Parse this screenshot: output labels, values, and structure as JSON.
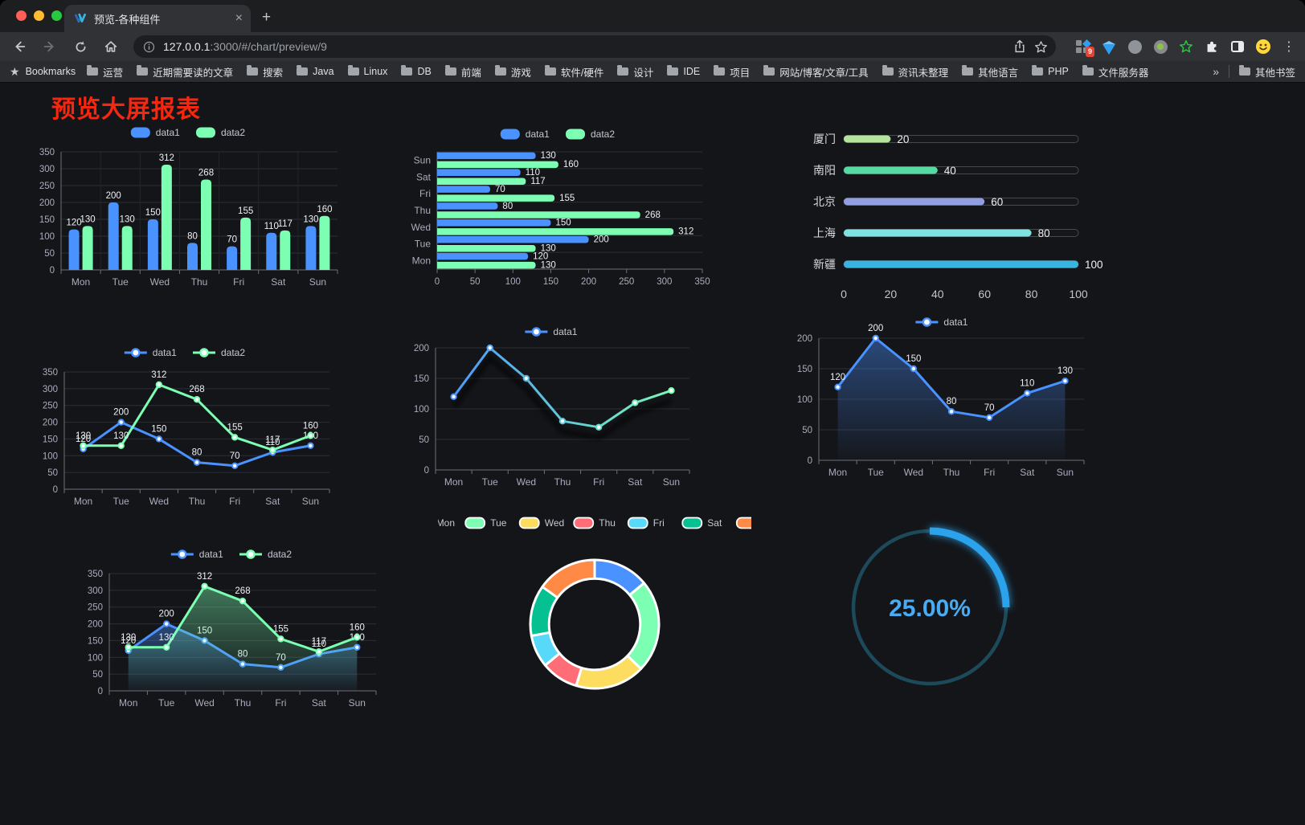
{
  "browser": {
    "tab_title": "预览-各种组件",
    "url_host": "127.0.0.1",
    "url_rest": ":3000/#/chart/preview/9",
    "bookmarks_label": "Bookmarks",
    "bookmark_folders": [
      "运营",
      "近期需要读的文章",
      "搜索",
      "Java",
      "Linux",
      "DB",
      "前端",
      "游戏",
      "软件/硬件",
      "设计",
      "IDE",
      "项目",
      "网站/博客/文章/工具",
      "资讯未整理",
      "其他语言",
      "PHP",
      "文件服务器"
    ],
    "overflow_chevron": "»",
    "other_bookmarks_label": "其他书签",
    "extension_badge": "9",
    "traffic_lights": [
      "#ff5f57",
      "#febc2e",
      "#28c840"
    ]
  },
  "page": {
    "title": "预览大屏报表",
    "title_color": "#f5270e"
  },
  "colors": {
    "data1": "#4992ff",
    "data2": "#7cffb2",
    "axis_text": "#a9adbb",
    "grid_line": "#2c2e38",
    "axis_line": "#6e7079",
    "label_text": "#eef0f4"
  },
  "chart_data": [
    {
      "id": "bar-grouped",
      "type": "bar",
      "categories": [
        "Mon",
        "Tue",
        "Wed",
        "Thu",
        "Fri",
        "Sat",
        "Sun"
      ],
      "series": [
        {
          "name": "data1",
          "color": "#4992ff",
          "values": [
            120,
            200,
            150,
            80,
            70,
            110,
            130
          ]
        },
        {
          "name": "data2",
          "color": "#7cffb2",
          "values": [
            130,
            130,
            312,
            268,
            155,
            117,
            160
          ]
        }
      ],
      "ylim": [
        0,
        350
      ],
      "ystep": 50,
      "legend": "rect",
      "labels": true
    },
    {
      "id": "bar-horizontal",
      "type": "hbar",
      "categories": [
        "Mon",
        "Tue",
        "Wed",
        "Thu",
        "Fri",
        "Sat",
        "Sun"
      ],
      "series": [
        {
          "name": "data1",
          "color": "#4992ff",
          "values": [
            120,
            200,
            150,
            80,
            70,
            110,
            130
          ]
        },
        {
          "name": "data2",
          "color": "#7cffb2",
          "values": [
            130,
            130,
            312,
            268,
            155,
            117,
            160
          ]
        }
      ],
      "xlim": [
        0,
        350
      ],
      "xstep": 50,
      "legend": "rect",
      "labels": true
    },
    {
      "id": "progress",
      "type": "progress",
      "max": 100,
      "xticks": [
        0,
        20,
        40,
        60,
        80,
        100
      ],
      "items": [
        {
          "label": "厦门",
          "value": 20,
          "color": "#b3e39c"
        },
        {
          "label": "南阳",
          "value": 40,
          "color": "#55dba2"
        },
        {
          "label": "北京",
          "value": 60,
          "color": "#919ee2"
        },
        {
          "label": "上海",
          "value": 80,
          "color": "#80e2df"
        },
        {
          "label": "新疆",
          "value": 100,
          "color": "#39b4e0"
        }
      ]
    },
    {
      "id": "line-two",
      "type": "line",
      "categories": [
        "Mon",
        "Tue",
        "Wed",
        "Thu",
        "Fri",
        "Sat",
        "Sun"
      ],
      "series": [
        {
          "name": "data1",
          "color": "#4992ff",
          "values": [
            120,
            200,
            150,
            80,
            70,
            110,
            130
          ]
        },
        {
          "name": "data2",
          "color": "#7cffb2",
          "values": [
            130,
            130,
            312,
            268,
            155,
            117,
            160
          ]
        }
      ],
      "ylim": [
        0,
        350
      ],
      "ystep": 50,
      "legend": "line",
      "labels": true
    },
    {
      "id": "line-gradient",
      "type": "line",
      "categories": [
        "Mon",
        "Tue",
        "Wed",
        "Thu",
        "Fri",
        "Sat",
        "Sun"
      ],
      "series": [
        {
          "name": "data1",
          "color": "#4992ff",
          "color2": "#7cffb2",
          "gradient": true,
          "shadow": true,
          "values": [
            120,
            200,
            150,
            80,
            70,
            110,
            130
          ]
        }
      ],
      "ylim": [
        0,
        200
      ],
      "ystep": 50,
      "legend": "line",
      "labels": false
    },
    {
      "id": "area-one",
      "type": "line",
      "categories": [
        "Mon",
        "Tue",
        "Wed",
        "Thu",
        "Fri",
        "Sat",
        "Sun"
      ],
      "series": [
        {
          "name": "data1",
          "color": "#4992ff",
          "area": true,
          "values": [
            120,
            200,
            150,
            80,
            70,
            110,
            130
          ]
        }
      ],
      "ylim": [
        0,
        200
      ],
      "ystep": 50,
      "legend": "line",
      "labels": true
    },
    {
      "id": "area-two",
      "type": "line",
      "categories": [
        "Mon",
        "Tue",
        "Wed",
        "Thu",
        "Fri",
        "Sat",
        "Sun"
      ],
      "series": [
        {
          "name": "data1",
          "color": "#4992ff",
          "area": true,
          "values": [
            120,
            200,
            150,
            80,
            70,
            110,
            130
          ]
        },
        {
          "name": "data2",
          "color": "#7cffb2",
          "area": true,
          "values": [
            130,
            130,
            312,
            268,
            155,
            117,
            160
          ]
        }
      ],
      "ylim": [
        0,
        350
      ],
      "ystep": 50,
      "legend": "line",
      "labels": true
    },
    {
      "id": "donut",
      "type": "pie",
      "inner_ratio": 0.585,
      "items": [
        {
          "name": "Mon",
          "value": 120,
          "color": "#4992ff"
        },
        {
          "name": "Tue",
          "value": 200,
          "color": "#7cffb2"
        },
        {
          "name": "Wed",
          "value": 150,
          "color": "#fddd60"
        },
        {
          "name": "Thu",
          "value": 80,
          "color": "#ff6e76"
        },
        {
          "name": "Fri",
          "value": 70,
          "color": "#58d9f9"
        },
        {
          "name": "Sat",
          "value": 110,
          "color": "#05c091"
        },
        {
          "name": "Sun",
          "value": 130,
          "color": "#ff8a45"
        }
      ]
    },
    {
      "id": "gauge",
      "type": "gauge",
      "value": 25,
      "display": "25.00%",
      "progress_color": "#2aa3ec",
      "track_color": "#1d4a5a",
      "text_color": "#49acf2"
    }
  ]
}
